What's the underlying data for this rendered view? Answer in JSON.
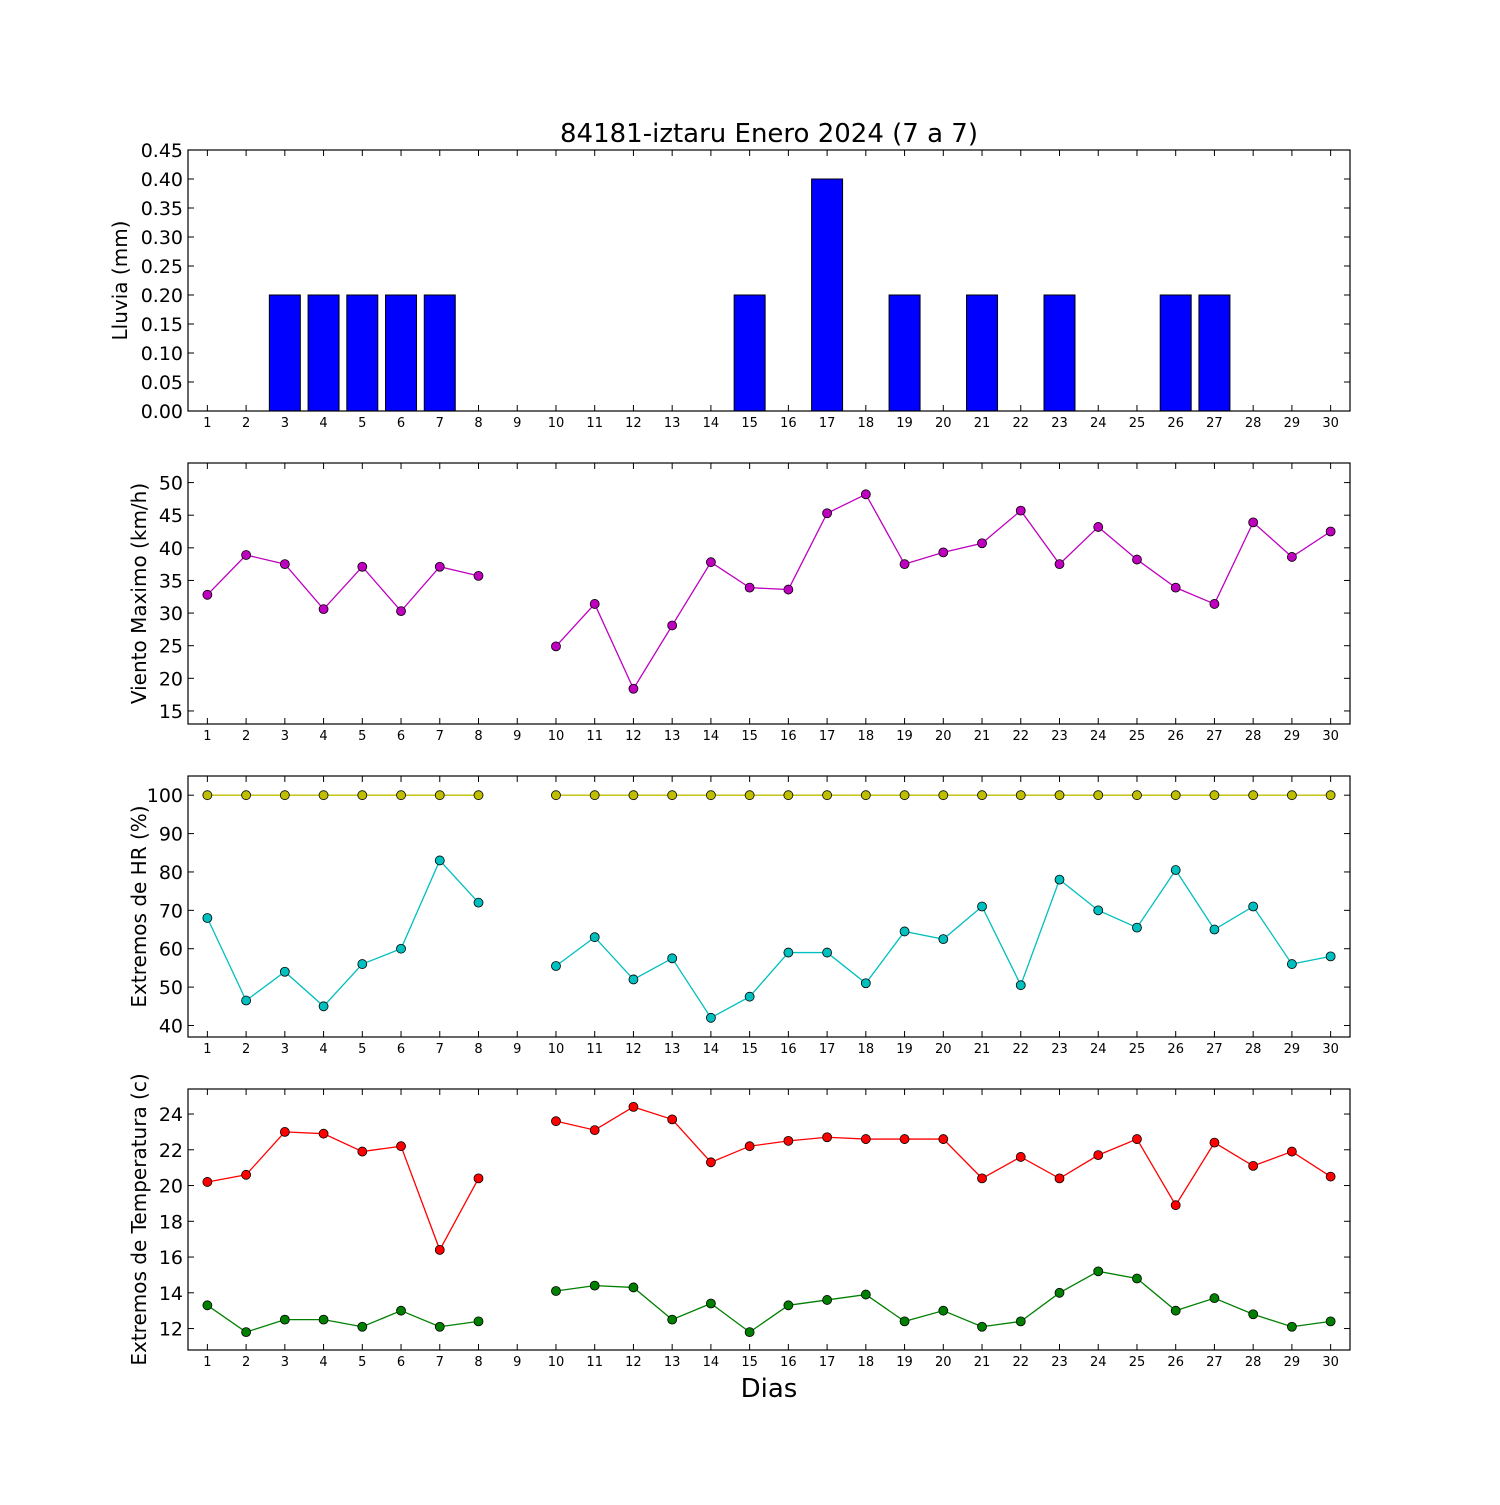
{
  "title": "84181-iztaru Enero 2024  (7 a 7)",
  "xlabel": "Dias",
  "colors": {
    "rain": "#0000ff",
    "wind": "#bf00bf",
    "hr_max": "#bfbf00",
    "hr_min": "#00bfbf",
    "temp_max": "#ff0000",
    "temp_min": "#008000"
  },
  "days": [
    1,
    2,
    3,
    4,
    5,
    6,
    7,
    8,
    9,
    10,
    11,
    12,
    13,
    14,
    15,
    16,
    17,
    18,
    19,
    20,
    21,
    22,
    23,
    24,
    25,
    26,
    27,
    28,
    29,
    30
  ],
  "chart_data": [
    {
      "type": "bar",
      "ylabel": "Lluvia (mm)",
      "ylim": [
        0,
        0.45
      ],
      "yticks": [
        "0.00",
        "0.05",
        "0.10",
        "0.15",
        "0.20",
        "0.25",
        "0.30",
        "0.35",
        "0.40",
        "0.45"
      ],
      "xticks": [
        "1",
        "2",
        "3",
        "4",
        "5",
        "6",
        "7",
        "8",
        "9",
        "10",
        "11",
        "12",
        "13",
        "14",
        "15",
        "16",
        "17",
        "18",
        "19",
        "20",
        "21",
        "22",
        "23",
        "24",
        "25",
        "26",
        "27",
        "28",
        "29",
        "30"
      ],
      "series": [
        {
          "values": [
            0,
            0,
            0.2,
            0.2,
            0.2,
            0.2,
            0.2,
            0,
            0,
            0,
            0,
            0,
            0,
            0,
            0.2,
            0,
            0.4,
            0,
            0.2,
            0,
            0.2,
            0,
            0.2,
            0,
            0,
            0.2,
            0.2,
            0,
            0,
            0
          ]
        }
      ]
    },
    {
      "type": "line",
      "ylabel": "Viento Maximo (km/h)",
      "ylim": [
        13,
        53
      ],
      "yticks": [
        "15",
        "20",
        "25",
        "30",
        "35",
        "40",
        "45",
        "50"
      ],
      "xticks": [
        "1",
        "2",
        "3",
        "4",
        "5",
        "6",
        "7",
        "8",
        "9",
        "10",
        "11",
        "12",
        "13",
        "14",
        "15",
        "16",
        "17",
        "18",
        "19",
        "20",
        "21",
        "22",
        "23",
        "24",
        "25",
        "26",
        "27",
        "28",
        "29",
        "30"
      ],
      "series": [
        {
          "values": [
            32.8,
            38.9,
            37.5,
            30.6,
            37.1,
            30.3,
            37.1,
            35.7,
            null,
            24.9,
            31.4,
            18.4,
            28.1,
            37.8,
            33.9,
            33.6,
            45.3,
            48.2,
            37.5,
            39.3,
            40.7,
            45.7,
            37.5,
            43.2,
            38.2,
            33.9,
            31.4,
            43.9,
            38.6,
            42.5
          ]
        }
      ]
    },
    {
      "type": "line",
      "ylabel": "Extremos de HR (%)",
      "ylim": [
        37,
        105
      ],
      "yticks": [
        "40",
        "50",
        "60",
        "70",
        "80",
        "90",
        "100"
      ],
      "xticks": [
        "1",
        "2",
        "3",
        "4",
        "5",
        "6",
        "7",
        "8",
        "9",
        "10",
        "11",
        "12",
        "13",
        "14",
        "15",
        "16",
        "17",
        "18",
        "19",
        "20",
        "21",
        "22",
        "23",
        "24",
        "25",
        "26",
        "27",
        "28",
        "29",
        "30"
      ],
      "series": [
        {
          "values": [
            100,
            100,
            100,
            100,
            100,
            100,
            100,
            100,
            null,
            100,
            100,
            100,
            100,
            100,
            100,
            100,
            100,
            100,
            100,
            100,
            100,
            100,
            100,
            100,
            100,
            100,
            100,
            100,
            100,
            100
          ]
        },
        {
          "values": [
            68,
            46.5,
            54,
            45,
            56,
            60,
            83,
            72,
            null,
            55.5,
            63,
            52,
            57.5,
            42,
            47.5,
            59,
            59,
            51,
            64.5,
            62.5,
            71,
            50.5,
            78,
            70,
            65.5,
            80.5,
            65,
            71,
            56,
            58
          ]
        }
      ]
    },
    {
      "type": "line",
      "ylabel": "Extremos de Temperatura (c)",
      "ylim": [
        10.8,
        25.4
      ],
      "yticks": [
        "12",
        "14",
        "16",
        "18",
        "20",
        "22",
        "24"
      ],
      "xticks": [
        "1",
        "2",
        "3",
        "4",
        "5",
        "6",
        "7",
        "8",
        "9",
        "10",
        "11",
        "12",
        "13",
        "14",
        "15",
        "16",
        "17",
        "18",
        "19",
        "20",
        "21",
        "22",
        "23",
        "24",
        "25",
        "26",
        "27",
        "28",
        "29",
        "30"
      ],
      "series": [
        {
          "values": [
            20.2,
            20.6,
            23,
            22.9,
            21.9,
            22.2,
            16.4,
            20.4,
            null,
            23.6,
            23.1,
            24.4,
            23.7,
            21.3,
            22.2,
            22.5,
            22.7,
            22.6,
            22.6,
            22.6,
            20.4,
            21.6,
            20.4,
            21.7,
            22.6,
            18.9,
            22.4,
            21.1,
            21.9,
            20.5
          ]
        },
        {
          "values": [
            13.3,
            11.8,
            12.5,
            12.5,
            12.1,
            13,
            12.1,
            12.4,
            null,
            14.1,
            14.4,
            14.3,
            12.5,
            13.4,
            11.8,
            13.3,
            13.6,
            13.9,
            12.4,
            13,
            12.1,
            12.4,
            14,
            15.2,
            14.8,
            13,
            13.7,
            12.8,
            12.1,
            12.4
          ]
        }
      ]
    }
  ]
}
